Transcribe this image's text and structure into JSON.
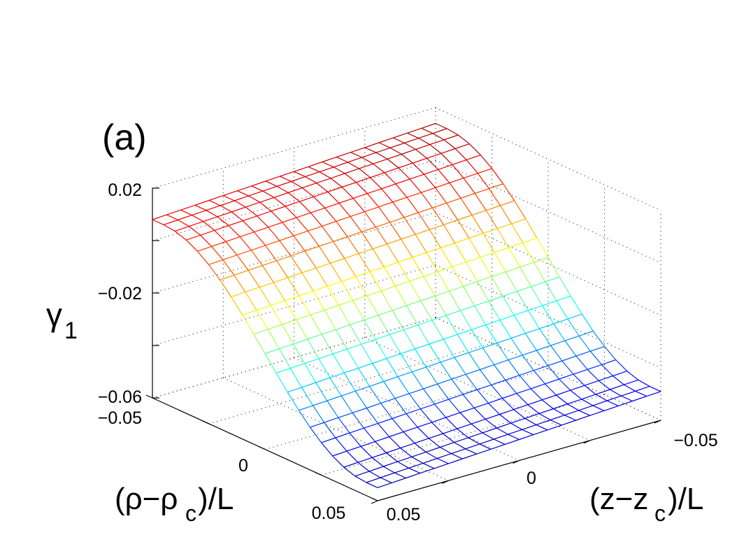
{
  "panel_label": "(a)",
  "chart_data": {
    "type": "surface",
    "zlabel": "γ",
    "zlabel_subscript": "1",
    "xlabel_parts": [
      "(ρ−ρ",
      "c",
      ")/L"
    ],
    "ylabel_parts": [
      "(z−z",
      "c",
      ")/L"
    ],
    "x_ticks": [
      "−0.05",
      "0",
      "0.05"
    ],
    "y_ticks": [
      "0.05",
      "0",
      "−0.05"
    ],
    "z_ticks": [
      "0.02",
      "−0.02",
      "−0.06"
    ],
    "x_range": [
      -0.05,
      0.05
    ],
    "y_range": [
      -0.05,
      0.05
    ],
    "zlim": [
      -0.06,
      0.02
    ],
    "grid": true,
    "colormap": "jet",
    "mesh_rows": 21,
    "mesh_cols": 21,
    "surface_model": {
      "description_free": true,
      "z_at_rho_min": 0.011,
      "z_at_rho_max": -0.052,
      "z_tilt_along_z": 0.006
    }
  }
}
